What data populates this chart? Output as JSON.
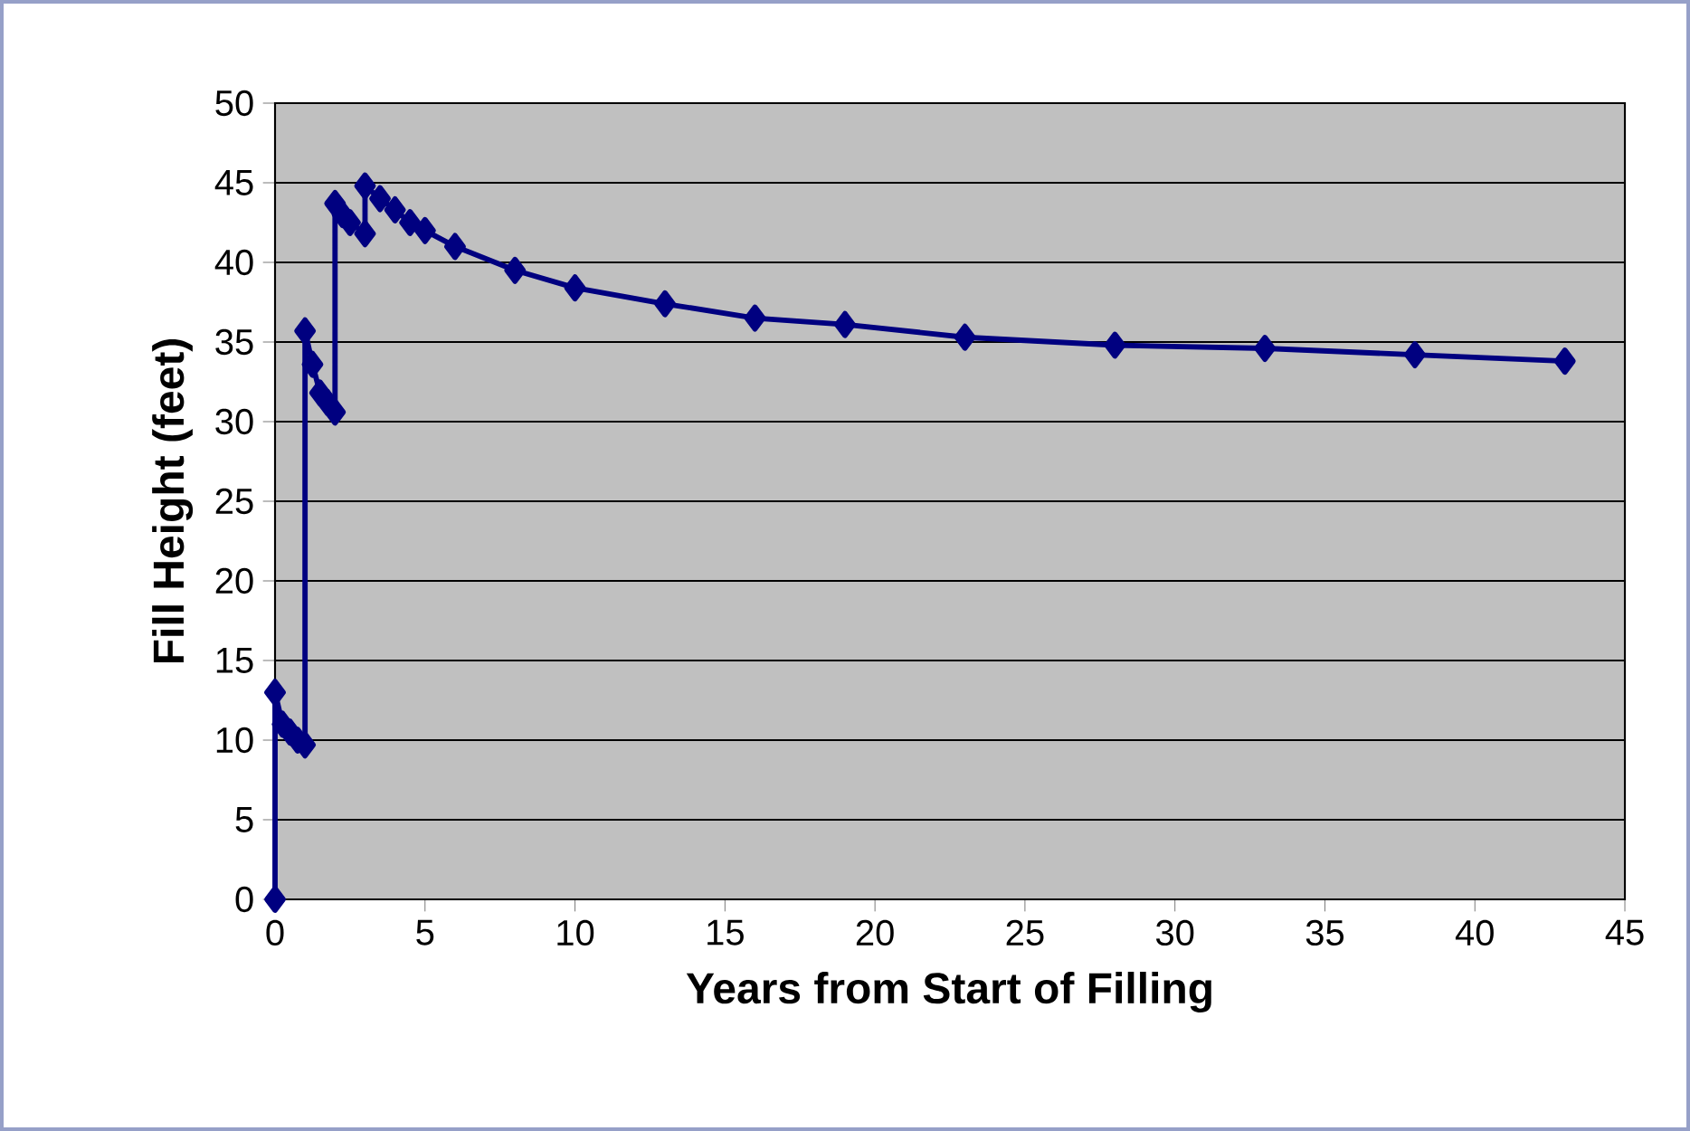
{
  "chart_data": {
    "type": "line",
    "xlabel": "Years from Start of Filling",
    "ylabel": "Fill Height  (feet)",
    "x": [
      0,
      0,
      0.25,
      0.5,
      0.75,
      1,
      1,
      1.25,
      1.5,
      1.75,
      2,
      2,
      2.25,
      2.5,
      3,
      3,
      3.5,
      4,
      4.5,
      5,
      6,
      8,
      10,
      13,
      16,
      19,
      23,
      28,
      33,
      38,
      43
    ],
    "series": [
      {
        "color": "#000080",
        "values": [
          0,
          13,
          11,
          10.5,
          10,
          9.7,
          35.7,
          33.6,
          31.8,
          31.2,
          30.6,
          43.7,
          43,
          42.5,
          41.8,
          44.8,
          44,
          43.3,
          42.5,
          42,
          41,
          39.5,
          38.4,
          37.4,
          36.5,
          36.1,
          35.3,
          34.8,
          34.6,
          34.2,
          33.8
        ]
      }
    ],
    "xlim": [
      0,
      45
    ],
    "xticks": [
      0,
      5,
      10,
      15,
      20,
      25,
      30,
      35,
      40,
      45
    ],
    "ylim": [
      0,
      50
    ],
    "yticks": [
      0,
      5,
      10,
      15,
      20,
      25,
      30,
      35,
      40,
      45,
      50
    ],
    "grid": "y",
    "marker": "diamond",
    "line_style": "solid"
  }
}
